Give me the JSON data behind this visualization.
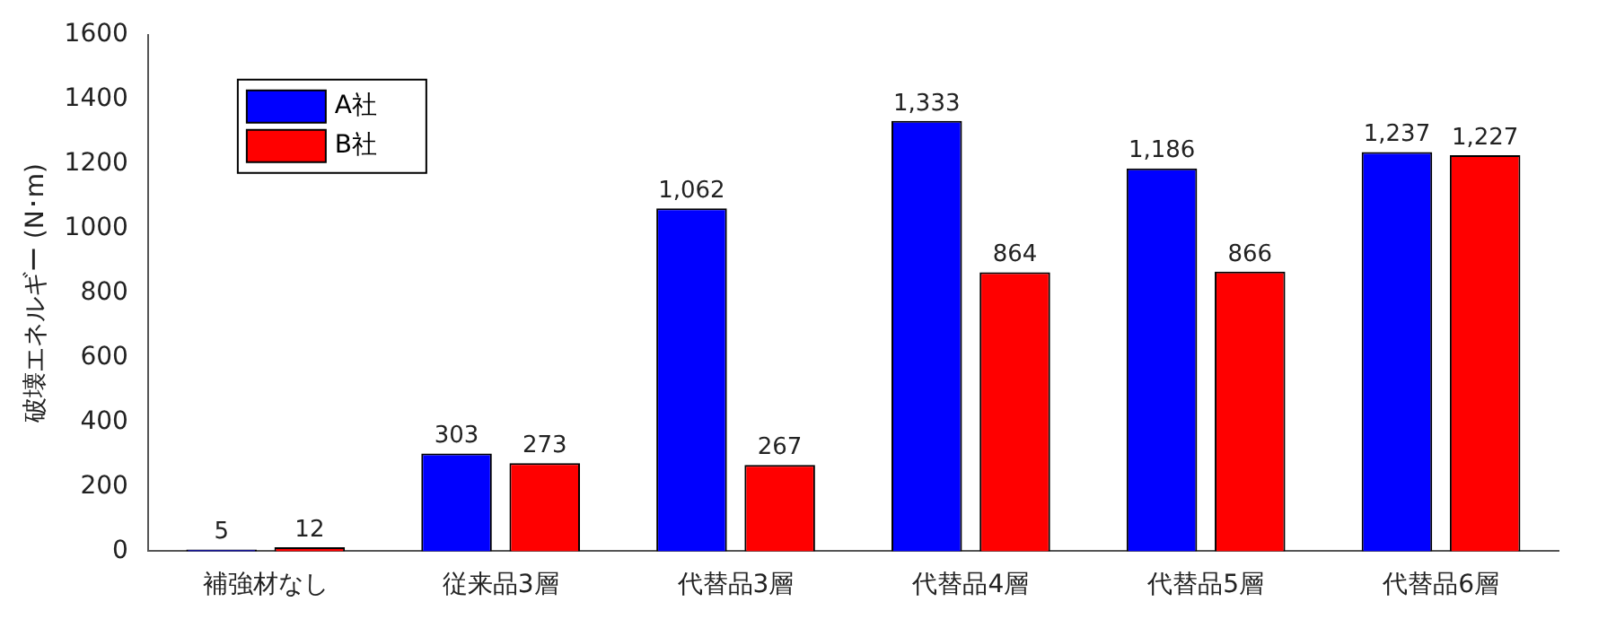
{
  "chart_data": {
    "type": "bar",
    "ylabel": "破壊エネルギー (N･m)",
    "categories": [
      "補強材なし",
      "従来品3層",
      "代替品3層",
      "代替品4層",
      "代替品5層",
      "代替品6層"
    ],
    "series": [
      {
        "name": "A社",
        "color": "#0000ff",
        "values": [
          5,
          303,
          1062,
          1333,
          1186,
          1237
        ],
        "value_labels": [
          "5",
          "303",
          "1,062",
          "1,333",
          "1,186",
          "1,237"
        ]
      },
      {
        "name": "B社",
        "color": "#ff0000",
        "values": [
          12,
          273,
          267,
          864,
          866,
          1227
        ],
        "value_labels": [
          "12",
          "273",
          "267",
          "864",
          "866",
          "1,227"
        ]
      }
    ],
    "ylim": [
      0,
      1600
    ],
    "yticks": [
      0,
      200,
      400,
      600,
      800,
      1000,
      1200,
      1400,
      1600
    ],
    "grid": false,
    "legend": "top left"
  }
}
